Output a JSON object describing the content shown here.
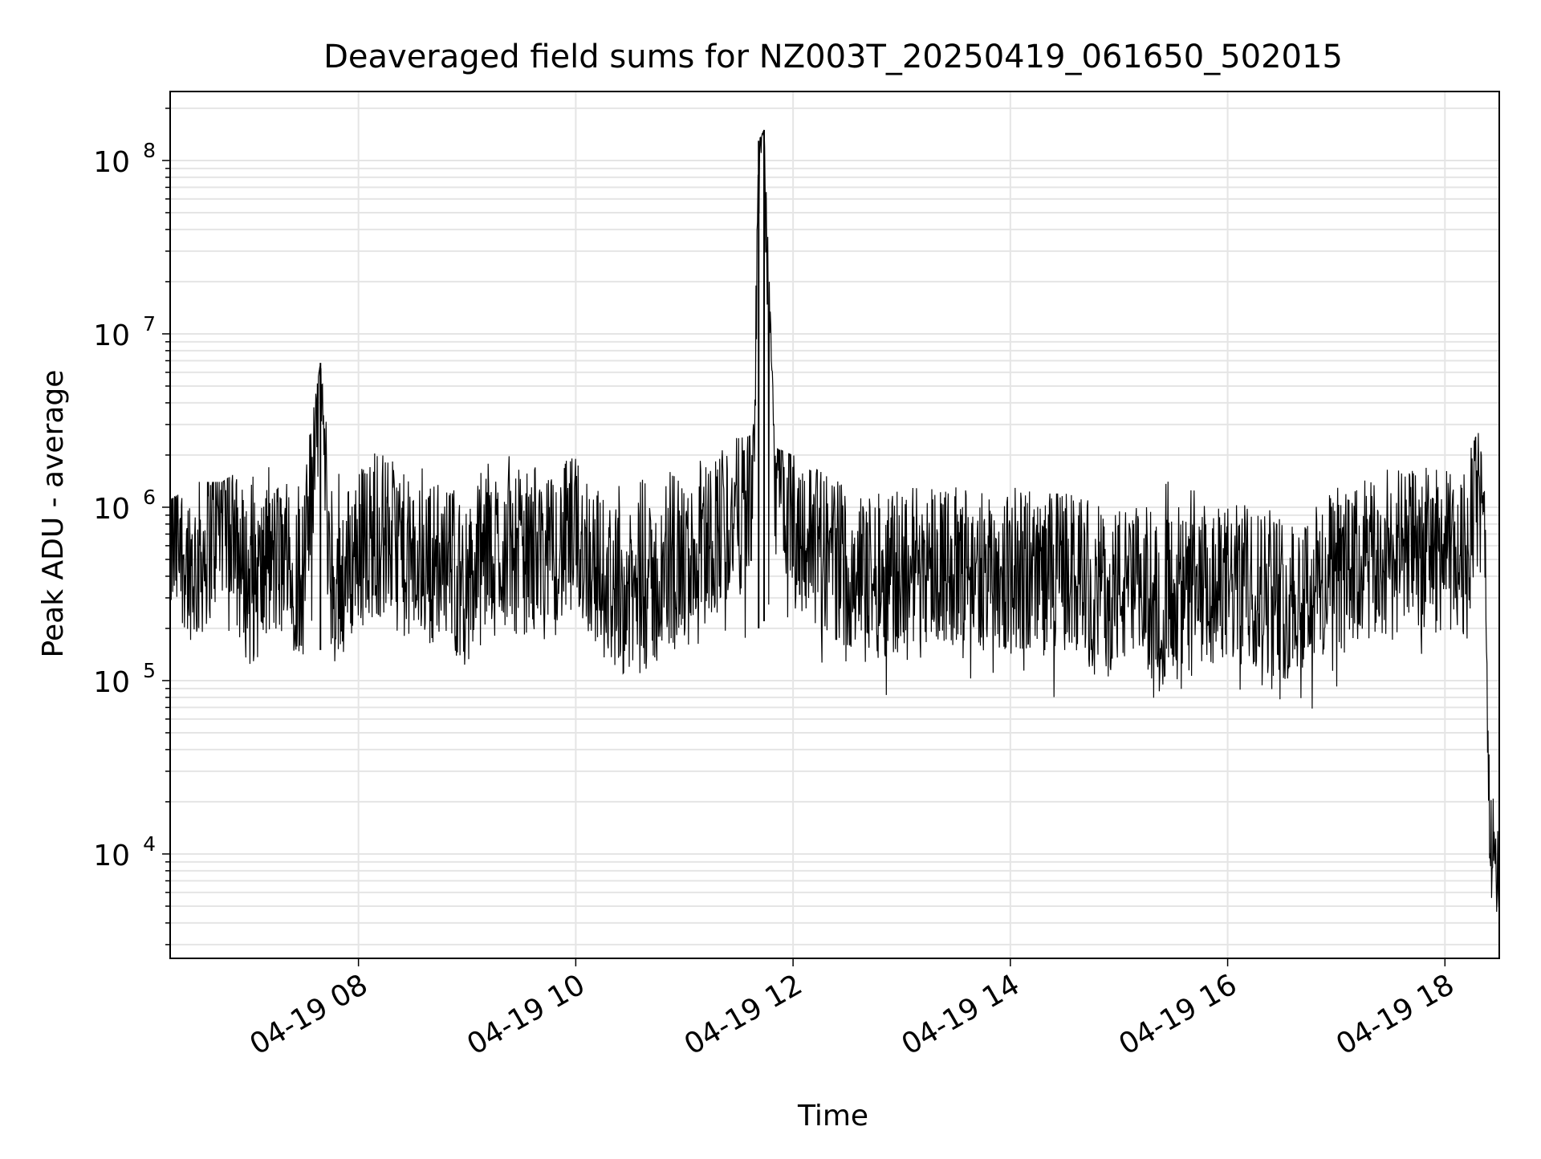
{
  "chart_data": {
    "type": "line",
    "title": "Deaveraged field sums for NZ003T_20250419_061650_502015",
    "xlabel": "Time",
    "ylabel": "Peak ADU - average",
    "yscale": "log",
    "ylim": [
      2500,
      250000000
    ],
    "xlim": [
      "2025-04-19 06:16",
      "2025-04-19 18:30"
    ],
    "grid": true,
    "line_color": "#000000",
    "grid_color": "#e5e5e5",
    "x_ticks": [
      {
        "label": "04-19 08",
        "value": "2025-04-19 08:00"
      },
      {
        "label": "04-19 10",
        "value": "2025-04-19 10:00"
      },
      {
        "label": "04-19 12",
        "value": "2025-04-19 12:00"
      },
      {
        "label": "04-19 14",
        "value": "2025-04-19 14:00"
      },
      {
        "label": "04-19 16",
        "value": "2025-04-19 16:00"
      },
      {
        "label": "04-19 18",
        "value": "2025-04-19 18:00"
      }
    ],
    "y_ticks": [
      {
        "base": "10",
        "exp": "4",
        "value": 10000
      },
      {
        "base": "10",
        "exp": "5",
        "value": 100000
      },
      {
        "base": "10",
        "exp": "6",
        "value": 1000000
      },
      {
        "base": "10",
        "exp": "7",
        "value": 10000000
      },
      {
        "base": "10",
        "exp": "8",
        "value": 100000000
      }
    ],
    "series": [
      {
        "x": [
          "2025-04-19 06:16",
          "2025-04-19 06:30",
          "2025-04-19 06:45",
          "2025-04-19 07:00",
          "2025-04-19 07:15",
          "2025-04-19 07:30",
          "2025-04-19 07:39",
          "2025-04-19 07:45",
          "2025-04-19 08:00",
          "2025-04-19 08:15",
          "2025-04-19 08:30",
          "2025-04-19 08:45",
          "2025-04-19 09:00",
          "2025-04-19 09:15",
          "2025-04-19 09:30",
          "2025-04-19 09:45",
          "2025-04-19 10:00",
          "2025-04-19 10:15",
          "2025-04-19 10:30",
          "2025-04-19 10:45",
          "2025-04-19 11:00",
          "2025-04-19 11:15",
          "2025-04-19 11:30",
          "2025-04-19 11:38",
          "2025-04-19 11:41",
          "2025-04-19 11:44",
          "2025-04-19 11:50",
          "2025-04-19 12:00",
          "2025-04-19 12:15",
          "2025-04-19 12:30",
          "2025-04-19 12:47",
          "2025-04-19 13:00",
          "2025-04-19 13:15",
          "2025-04-19 13:30",
          "2025-04-19 13:45",
          "2025-04-19 14:00",
          "2025-04-19 14:15",
          "2025-04-19 14:30",
          "2025-04-19 14:45",
          "2025-04-19 15:00",
          "2025-04-19 15:12",
          "2025-04-19 15:30",
          "2025-04-19 15:45",
          "2025-04-19 16:00",
          "2025-04-19 16:15",
          "2025-04-19 16:30",
          "2025-04-19 16:45",
          "2025-04-19 17:00",
          "2025-04-19 17:15",
          "2025-04-19 17:30",
          "2025-04-19 17:45",
          "2025-04-19 18:00",
          "2025-04-19 18:10",
          "2025-04-19 18:18",
          "2025-04-19 18:22",
          "2025-04-19 18:25",
          "2025-04-19 18:28",
          "2025-04-19 18:30"
        ],
        "y": [
          600000,
          450000,
          900000,
          350000,
          500000,
          400000,
          6800000,
          300000,
          600000,
          700000,
          450000,
          500000,
          350000,
          600000,
          550000,
          500000,
          700000,
          400000,
          300000,
          350000,
          450000,
          700000,
          900000,
          1400000,
          130000000,
          150000000,
          1500000,
          800000,
          600000,
          450000,
          400000,
          450000,
          500000,
          450000,
          400000,
          450000,
          400000,
          450000,
          350000,
          350000,
          300000,
          300000,
          300000,
          350000,
          350000,
          300000,
          350000,
          400000,
          450000,
          500000,
          600000,
          550000,
          500000,
          1500000,
          500000,
          12000,
          5500,
          6500
        ],
        "noise_min": [
          300000,
          150000,
          110000,
          90000,
          150000,
          130000,
          150000,
          100000,
          200000,
          180000,
          170000,
          140000,
          120000,
          160000,
          180000,
          170000,
          190000,
          110000,
          110000,
          110000,
          140000,
          130000,
          90000,
          160000,
          200000,
          220000,
          200000,
          150000,
          110000,
          110000,
          60000,
          100000,
          90000,
          110000,
          90000,
          90000,
          80000,
          80000,
          80000,
          80000,
          60000,
          80000,
          80000,
          80000,
          80000,
          70000,
          65000,
          80000,
          100000,
          110000,
          100000,
          120000,
          140000,
          300000,
          250000,
          6000,
          4500,
          5000
        ],
        "noise_max": [
          1100000,
          1400000,
          1400000,
          1800000,
          1700000,
          1600000,
          6800000,
          1500000,
          1900000,
          2500000,
          1800000,
          1600000,
          1300000,
          2400000,
          1700000,
          2000000,
          1900000,
          1500000,
          1600000,
          1800000,
          1500000,
          2700000,
          2500000,
          2600000,
          130000000,
          150000000,
          2200000,
          2000000,
          1600000,
          1500000,
          1200000,
          1700000,
          1300000,
          1300000,
          1200000,
          1500000,
          1200000,
          1200000,
          1100000,
          1100000,
          1100000,
          1500000,
          1200000,
          1100000,
          1400000,
          1200000,
          1200000,
          1300000,
          1500000,
          1700000,
          1600000,
          1900000,
          1700000,
          2700000,
          2500000,
          65000,
          55000,
          50000
        ]
      }
    ]
  }
}
